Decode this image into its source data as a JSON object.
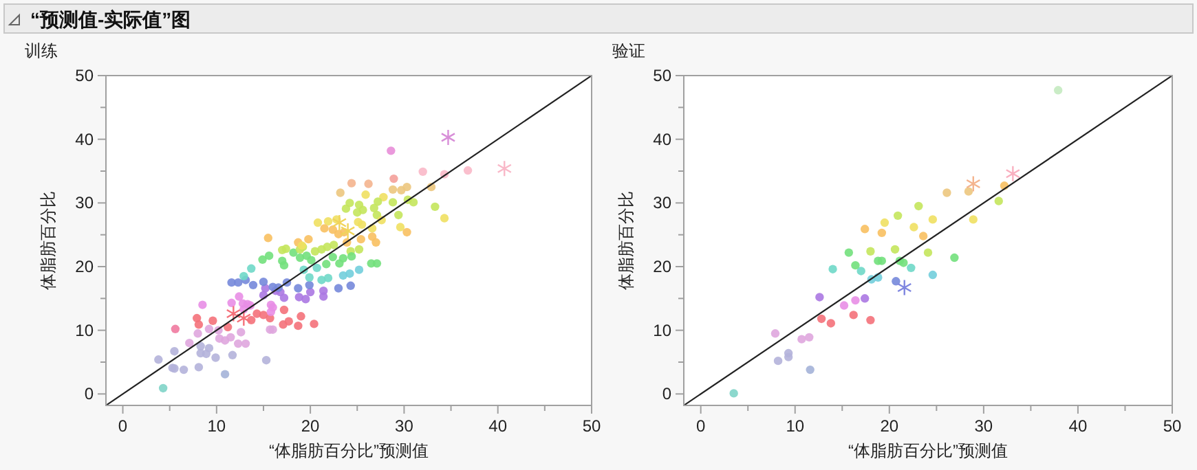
{
  "chart_data": [
    {
      "type": "scatter",
      "title": "训练",
      "annotations": [
        "“预测值-实际值”图"
      ],
      "xlabel": "“体脂肪百分比”预测值",
      "ylabel": "体脂肪百分比",
      "xlim": [
        -1.8,
        50
      ],
      "ylim": [
        -1.8,
        50
      ],
      "xticks": [
        0,
        {
          "value": 5,
          "label": null
        },
        10,
        {
          "value": 15,
          "label": null
        },
        20,
        {
          "value": 25,
          "label": null
        },
        30,
        {
          "value": 35,
          "label": null
        },
        40,
        {
          "value": 45,
          "label": null
        },
        50
      ],
      "yticks": [
        0,
        {
          "value": 5,
          "label": null
        },
        10,
        {
          "value": 15,
          "label": null
        },
        20,
        {
          "value": 25,
          "label": null
        },
        30,
        {
          "value": 35,
          "label": null
        },
        40,
        {
          "value": 45,
          "label": null
        },
        50
      ],
      "series": [
        {
          "marker": "circle",
          "x": [
            4.3,
            3.8,
            5.5,
            5.3,
            5.5,
            6.5,
            8.1,
            10.9,
            8.3,
            8.9,
            9.2,
            9.9,
            11.7,
            15.3,
            7.1,
            8.3,
            8.0,
            9.2,
            10.2,
            10.3,
            10.9,
            11.5,
            12.3,
            12.6,
            13.1,
            15.7,
            16.0,
            5.6,
            7.9,
            8.1,
            9.6,
            8.5,
            11.2,
            13.7,
            14.3,
            15.0,
            15.7,
            17.1,
            17.7,
            18.7,
            19.0,
            20.4,
            17.2,
            11.6,
            12.4,
            12.8,
            13.3,
            13.6,
            12.9,
            15.8,
            16.0,
            15.8,
            15.0,
            15.2,
            16.3,
            16.8,
            17.2,
            18.8,
            19.5,
            20.0,
            21.4,
            19.9,
            18.7,
            21.4,
            11.6,
            12.3,
            13.1,
            13.9,
            15.0,
            16.0,
            16.6,
            17.5,
            12.9,
            13.7,
            19.3,
            19.9,
            20.7,
            21.2,
            21.9,
            14.9,
            15.6,
            17.0,
            17.2,
            18.2,
            18.9,
            19.6,
            20.1,
            21.7,
            22.4,
            17.0,
            17.4,
            18.9,
            19.2,
            20.5,
            21.2,
            21.8,
            22.5,
            15.5,
            18.7,
            19.8,
            19.1,
            20.8,
            21.9,
            21.5,
            22.4,
            28.6,
            32.0,
            34.3,
            36.8,
            28.9,
            24.4,
            26.2,
            28.8,
            29.7,
            30.3,
            32.9,
            23.2,
            25.9,
            27.8,
            24.2,
            25.2,
            23.8,
            25.0,
            25.6,
            27.2,
            26.8,
            28.8,
            27.1,
            29.4,
            30.4,
            31.0,
            33.3,
            22.8,
            25.1,
            25.5,
            26.6,
            27.6,
            29.6,
            34.3,
            23.0,
            23.6,
            23.9,
            25.4,
            26.6,
            27.0,
            30.3,
            25.2,
            24.3,
            23.1,
            23.5,
            24.4,
            26.5,
            27.1,
            23.5,
            24.2,
            25.2,
            23.0,
            24.3
          ],
          "values": [
            0.9,
            5.4,
            6.7,
            4.1,
            4.0,
            3.8,
            4.2,
            3.1,
            6.4,
            6.3,
            7.2,
            5.7,
            6.1,
            5.3,
            8.0,
            7.5,
            9.5,
            10.2,
            10.0,
            8.7,
            8.4,
            8.9,
            7.9,
            9.7,
            7.9,
            10.1,
            10.1,
            10.2,
            11.9,
            10.9,
            11.5,
            14.0,
            10.5,
            11.6,
            12.6,
            12.4,
            11.9,
            10.9,
            11.4,
            10.7,
            12.2,
            11.0,
            13.2,
            14.3,
            15.3,
            14.2,
            14.1,
            13.9,
            13.3,
            14.0,
            13.6,
            12.9,
            15.5,
            16.6,
            16.2,
            16.0,
            15.1,
            15.2,
            14.9,
            16.0,
            15.3,
            17.1,
            16.6,
            16.2,
            17.5,
            17.5,
            17.9,
            17.1,
            17.6,
            16.8,
            16.7,
            17.5,
            18.5,
            19.7,
            19.5,
            18.3,
            19.8,
            17.9,
            18.2,
            21.1,
            21.7,
            20.9,
            20.2,
            22.2,
            21.4,
            21.7,
            21.0,
            20.4,
            21.5,
            22.6,
            22.8,
            22.7,
            23.1,
            22.4,
            22.7,
            23.1,
            23.4,
            24.5,
            23.8,
            24.3,
            23.3,
            26.9,
            27.1,
            26.0,
            25.8,
            38.2,
            34.9,
            34.5,
            35.1,
            33.8,
            33.1,
            33.0,
            32.1,
            32.0,
            32.5,
            32.5,
            31.6,
            31.3,
            30.9,
            30.0,
            29.7,
            29.1,
            28.5,
            28.9,
            30.2,
            29.2,
            30.1,
            28.1,
            28.1,
            30.5,
            30.1,
            29.4,
            27.4,
            27.0,
            26.6,
            26.0,
            27.3,
            26.2,
            27.6,
            25.1,
            25.4,
            23.8,
            24.3,
            24.7,
            23.8,
            25.4,
            22.7,
            22.4,
            20.5,
            21.3,
            21.6,
            20.5,
            20.5,
            18.6,
            18.9,
            19.5,
            16.6,
            17.0
          ],
          "colors": [
            "#80d4c8",
            "#b4b2da",
            "#b4b2da",
            "#b4b2da",
            "#b4b2da",
            "#b4b2da",
            "#b4b2da",
            "#a4b2d8",
            "#b4b2da",
            "#b4b2da",
            "#b4b2da",
            "#b4b2da",
            "#b4b2da",
            "#b4b2da",
            "#dfa6de",
            "#b4b2da",
            "#dfa6de",
            "#dfa6de",
            "#dfa6de",
            "#dfa6de",
            "#dfa6de",
            "#dfa6de",
            "#dfa6de",
            "#dfa6de",
            "#dfa6de",
            "#dfa6de",
            "#dfa6de",
            "#f07aa0",
            "#f4717a",
            "#f4717a",
            "#f4717a",
            "#e88ee6",
            "#f4717a",
            "#f4717a",
            "#f4717a",
            "#f4717a",
            "#f4717a",
            "#f4717a",
            "#f4717a",
            "#f4717a",
            "#f4717a",
            "#f4717a",
            "#f4717a",
            "#e88ee6",
            "#e88ee6",
            "#e88ee6",
            "#e88ee6",
            "#e88ee6",
            "#e88ee6",
            "#e88ee6",
            "#e88ee6",
            "#e88ee6",
            "#ab78e2",
            "#ab78e2",
            "#ab78e2",
            "#ab78e2",
            "#ab78e2",
            "#ab78e2",
            "#ab78e2",
            "#ab78e2",
            "#ab78e2",
            "#7688da",
            "#7688da",
            "#ab78e2",
            "#7688da",
            "#7688da",
            "#7688da",
            "#7688da",
            "#7688da",
            "#7688da",
            "#7688da",
            "#7688da",
            "#6fd8c8",
            "#6fd8c8",
            "#6fd8c8",
            "#6fd8c8",
            "#6fd8c8",
            "#6fd8c8",
            "#6fd8c8",
            "#72e07c",
            "#72e07c",
            "#72e07c",
            "#72e07c",
            "#72e07c",
            "#72e07c",
            "#72e07c",
            "#72e07c",
            "#72e07c",
            "#72e07c",
            "#c4e65c",
            "#c4e65c",
            "#c4e65c",
            "#c4e65c",
            "#c4e65c",
            "#c4e65c",
            "#c4e65c",
            "#c4e65c",
            "#f8c060",
            "#f8c060",
            "#f8c060",
            "#f0e062",
            "#f0e062",
            "#f0e062",
            "#f8c060",
            "#f8c060",
            "#e88ed8",
            "#f9b8c8",
            "#f9b8c8",
            "#f9b8c8",
            "#f4a09a",
            "#f4b48e",
            "#f4b48e",
            "#ecc67e",
            "#ecc67e",
            "#ecc67e",
            "#ecc67e",
            "#ecc67e",
            "#f0e062",
            "#f0e062",
            "#c4e65c",
            "#c4e65c",
            "#c4e65c",
            "#c4e65c",
            "#c4e65c",
            "#c4e65c",
            "#c4e65c",
            "#c4e65c",
            "#c4e65c",
            "#c4e65c",
            "#c4e65c",
            "#c4e65c",
            "#c4e65c",
            "#f0e062",
            "#f0e062",
            "#f0e062",
            "#f0e062",
            "#f0e062",
            "#f0e062",
            "#f0e062",
            "#f8c060",
            "#f8c060",
            "#f8c060",
            "#f8c060",
            "#f8c060",
            "#f8c060",
            "#f8c060",
            "#c4e65c",
            "#c4e65c",
            "#72e07c",
            "#72e07c",
            "#72e07c",
            "#72e07c",
            "#72e07c",
            "#72cedc",
            "#72cedc",
            "#72cedc",
            "#7688da",
            "#7688da"
          ]
        },
        {
          "marker": "cross",
          "x": [
            11.8,
            12.9,
            23.1,
            24.0,
            34.7,
            40.7
          ],
          "values": [
            12.6,
            11.9,
            26.9,
            25.6,
            40.3,
            35.4
          ],
          "colors": [
            "#f4717a",
            "#f4717a",
            "#f0d45a",
            "#f0d45a",
            "#d88ed8",
            "#f9b8c8"
          ]
        },
        {
          "type": "line",
          "color": "#222222",
          "x": [
            -1.8,
            50
          ],
          "values": [
            -1.8,
            50
          ]
        }
      ]
    },
    {
      "type": "scatter",
      "title": "验证",
      "xlabel": "“体脂肪百分比”预测值",
      "ylabel": "体脂肪百分比",
      "xlim": [
        -1.8,
        50
      ],
      "ylim": [
        -1.8,
        50
      ],
      "xticks": [
        0,
        {
          "value": 5,
          "label": null
        },
        10,
        {
          "value": 15,
          "label": null
        },
        20,
        {
          "value": 25,
          "label": null
        },
        30,
        {
          "value": 35,
          "label": null
        },
        40,
        {
          "value": 45,
          "label": null
        },
        50
      ],
      "yticks": [
        0,
        {
          "value": 5,
          "label": null
        },
        10,
        {
          "value": 15,
          "label": null
        },
        20,
        {
          "value": 25,
          "label": null
        },
        30,
        {
          "value": 35,
          "label": null
        },
        40,
        {
          "value": 45,
          "label": null
        },
        50
      ],
      "series": [
        {
          "marker": "circle",
          "x": [
            3.5,
            11.6,
            8.2,
            9.3,
            9.3,
            7.9,
            10.7,
            11.5,
            12.8,
            13.8,
            16.2,
            18.0,
            12.6,
            15.2,
            16.4,
            17.4,
            14.0,
            17.0,
            18.1,
            18.8,
            15.7,
            16.4,
            18.8,
            19.2,
            18.0,
            20.6,
            17.4,
            19.2,
            19.5,
            20.9,
            20.7,
            21.1,
            21.5,
            22.3,
            24.6,
            26.9,
            24.1,
            23.1,
            22.6,
            24.6,
            23.6,
            26.1,
            28.4,
            32.2,
            31.6,
            28.9,
            37.9
          ],
          "values": [
            0.1,
            3.8,
            5.2,
            6.4,
            5.8,
            9.5,
            8.6,
            8.9,
            11.8,
            11.1,
            12.4,
            11.6,
            15.2,
            13.9,
            14.7,
            15.0,
            19.6,
            19.3,
            18.0,
            18.3,
            22.2,
            20.2,
            20.9,
            20.9,
            22.4,
            22.7,
            25.9,
            25.3,
            26.9,
            28.0,
            17.7,
            20.9,
            20.6,
            19.8,
            18.7,
            21.4,
            22.2,
            29.5,
            26.2,
            27.4,
            24.8,
            31.6,
            31.8,
            32.7,
            30.3,
            27.4,
            47.7
          ],
          "colors": [
            "#80d4c8",
            "#a4b2d8",
            "#b4b2da",
            "#b4b2da",
            "#b4b2da",
            "#dfa6de",
            "#dfa6de",
            "#dfa6de",
            "#f4717a",
            "#f4717a",
            "#f4717a",
            "#f4717a",
            "#ab78e2",
            "#e88ee6",
            "#e88ee6",
            "#ab78e2",
            "#6fd8c8",
            "#6fd8c8",
            "#72cedc",
            "#72cedc",
            "#72e07c",
            "#72e07c",
            "#72e07c",
            "#72e07c",
            "#c4e65c",
            "#c4e65c",
            "#f8c060",
            "#f8c060",
            "#f0e062",
            "#c4e65c",
            "#7688da",
            "#72e07c",
            "#72e07c",
            "#6fd8c8",
            "#72cedc",
            "#72e07c",
            "#c4e65c",
            "#c4e65c",
            "#f0e062",
            "#f0e062",
            "#f8c060",
            "#ecc67e",
            "#ecc67e",
            "#f8c060",
            "#c4e65c",
            "#f0e062",
            "#c4eac0"
          ]
        },
        {
          "marker": "cross",
          "x": [
            21.6,
            28.9,
            33.1
          ],
          "values": [
            16.7,
            33.0,
            34.6
          ],
          "colors": [
            "#7f86e0",
            "#f4b48e",
            "#f9b0c0"
          ]
        },
        {
          "type": "line",
          "color": "#222222",
          "x": [
            -1.8,
            50
          ],
          "values": [
            -1.8,
            50
          ]
        }
      ]
    }
  ]
}
